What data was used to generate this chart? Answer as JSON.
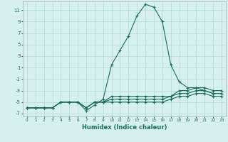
{
  "xlabel": "Humidex (Indice chaleur)",
  "background_color": "#d6f0ee",
  "grid_color": "#b8ddd9",
  "line_color": "#1a6b5e",
  "xlim": [
    -0.5,
    23.5
  ],
  "ylim": [
    -7.5,
    12.5
  ],
  "xticks": [
    0,
    1,
    2,
    3,
    4,
    5,
    6,
    7,
    8,
    9,
    10,
    11,
    12,
    13,
    14,
    15,
    16,
    17,
    18,
    19,
    20,
    21,
    22,
    23
  ],
  "yticks": [
    -7,
    -5,
    -3,
    -1,
    1,
    3,
    5,
    7,
    9,
    11
  ],
  "lines": [
    {
      "x": [
        0,
        1,
        2,
        3,
        4,
        5,
        6,
        7,
        8,
        9,
        10,
        11,
        12,
        13,
        14,
        15,
        16,
        17,
        18,
        19,
        20,
        21,
        22,
        23
      ],
      "y": [
        -6,
        -6,
        -6,
        -6,
        -5,
        -5,
        -5,
        -6.5,
        -5.5,
        -4.5,
        1.5,
        4,
        6.5,
        10,
        12,
        11.5,
        9,
        1.5,
        -1.5,
        -2.5,
        -2.5,
        -3,
        -3.5,
        -3.5
      ]
    },
    {
      "x": [
        0,
        1,
        2,
        3,
        4,
        5,
        6,
        7,
        8,
        9,
        10,
        11,
        12,
        13,
        14,
        15,
        16,
        17,
        18,
        19,
        20,
        21,
        22,
        23
      ],
      "y": [
        -6,
        -6,
        -6,
        -6,
        -5,
        -5,
        -5,
        -6,
        -5,
        -5,
        -4,
        -4,
        -4,
        -4,
        -4,
        -4,
        -4,
        -4,
        -3,
        -3,
        -2.5,
        -2.5,
        -3,
        -3
      ]
    },
    {
      "x": [
        0,
        1,
        2,
        3,
        4,
        5,
        6,
        7,
        8,
        9,
        10,
        11,
        12,
        13,
        14,
        15,
        16,
        17,
        18,
        19,
        20,
        21,
        22,
        23
      ],
      "y": [
        -6,
        -6,
        -6,
        -6,
        -5,
        -5,
        -5,
        -6,
        -5,
        -5,
        -4.5,
        -4.5,
        -4.5,
        -4.5,
        -4.5,
        -4.5,
        -4.5,
        -4,
        -3.5,
        -3.5,
        -3,
        -3,
        -3.5,
        -3.5
      ]
    },
    {
      "x": [
        0,
        1,
        2,
        3,
        4,
        5,
        6,
        7,
        8,
        9,
        10,
        11,
        12,
        13,
        14,
        15,
        16,
        17,
        18,
        19,
        20,
        21,
        22,
        23
      ],
      "y": [
        -6,
        -6,
        -6,
        -6,
        -5,
        -5,
        -5,
        -6,
        -5,
        -5,
        -5,
        -5,
        -5,
        -5,
        -5,
        -5,
        -5,
        -4.5,
        -4,
        -4,
        -3.5,
        -3.5,
        -4,
        -4
      ]
    }
  ]
}
